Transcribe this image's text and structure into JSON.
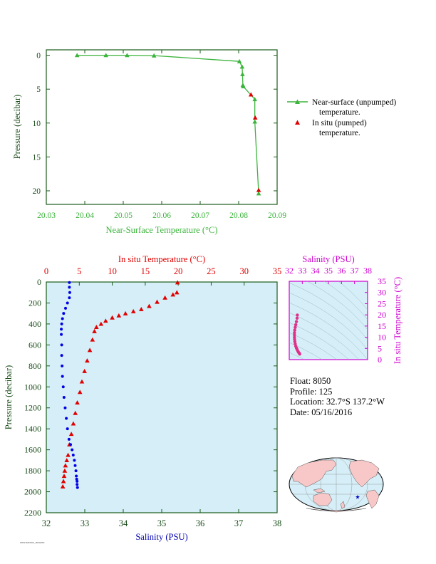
{
  "colors": {
    "green": "#3cb43c",
    "red": "#e00000",
    "blue": "#0000e6",
    "magenta": "#d000d0",
    "plot_bg": "#d6eef7",
    "land": "#f8c8c8",
    "ocean": "#d6eef7"
  },
  "chart_data": [
    {
      "type": "line",
      "id": "near-surface",
      "xlabel": "Near-Surface Temperature (°C)",
      "ylabel": "Pressure (decibar)",
      "xlim": [
        20.03,
        20.09
      ],
      "ylim": [
        22,
        -0.8
      ],
      "xticks": [
        "20.03",
        "20.04",
        "20.05",
        "20.06",
        "20.07",
        "20.08",
        "20.09"
      ],
      "yticks": [
        "0",
        "5",
        "10",
        "15",
        "20"
      ],
      "legend_placement": "right",
      "series": [
        {
          "name": "Near-surface (unpumped) temperature.",
          "marker": "triangle",
          "color": "green",
          "x": [
            20.038,
            20.0455,
            20.051,
            20.058,
            20.0802,
            20.0809,
            20.081,
            20.0811,
            20.0812,
            20.0842,
            20.0842,
            20.0852
          ],
          "y": [
            0.0,
            0.0,
            0.0,
            0.05,
            0.9,
            1.7,
            2.8,
            4.4,
            4.6,
            6.5,
            9.8,
            20.4
          ]
        },
        {
          "name": "In situ (pumped) temperature.",
          "marker": "triangle",
          "color": "red",
          "x": [
            20.0832,
            20.0843,
            20.0852
          ],
          "y": [
            5.8,
            9.2,
            19.9
          ]
        }
      ]
    },
    {
      "type": "line",
      "id": "profile",
      "xlabel": "Salinity (PSU)",
      "ylabel": "Pressure (decibar)",
      "x2label": "In situ Temperature (°C)",
      "salinity_lim": [
        32,
        38
      ],
      "temperature_lim": [
        0,
        35
      ],
      "ylim": [
        2200,
        0
      ],
      "salinity_ticks": [
        "32",
        "33",
        "34",
        "35",
        "36",
        "37",
        "38"
      ],
      "temperature_ticks": [
        "0",
        "5",
        "10",
        "15",
        "20",
        "25",
        "30",
        "35"
      ],
      "yticks": [
        "0",
        "200",
        "400",
        "600",
        "800",
        "1000",
        "1200",
        "1400",
        "1600",
        "1800",
        "2000",
        "2200"
      ],
      "series": [
        {
          "name": "In situ Temperature",
          "color": "red",
          "marker": "triangle",
          "x": [
            19.9,
            19.8,
            19.2,
            18.0,
            16.8,
            15.6,
            14.4,
            13.2,
            12.0,
            11.0,
            10.0,
            9.0,
            8.3,
            7.6,
            7.3,
            7.0,
            6.6,
            6.2,
            5.8,
            5.4,
            5.1,
            4.7,
            4.4,
            4.1,
            3.8,
            3.5,
            3.3,
            3.1,
            2.9,
            2.8,
            2.7,
            2.6,
            2.5
          ],
          "y": [
            5,
            100,
            120,
            150,
            190,
            230,
            260,
            280,
            300,
            320,
            340,
            370,
            400,
            430,
            470,
            550,
            650,
            750,
            850,
            950,
            1050,
            1150,
            1250,
            1350,
            1450,
            1550,
            1650,
            1700,
            1750,
            1800,
            1850,
            1900,
            1950
          ]
        },
        {
          "name": "Salinity",
          "color": "blue",
          "marker": "dot",
          "x": [
            32.6,
            32.6,
            32.61,
            32.6,
            32.55,
            32.5,
            32.45,
            32.42,
            32.4,
            32.39,
            32.39,
            32.4,
            32.4,
            32.41,
            32.42,
            32.44,
            32.46,
            32.49,
            32.52,
            32.55,
            32.59,
            32.63,
            32.67,
            32.7,
            32.73,
            32.75,
            32.77,
            32.78,
            32.79,
            32.8,
            32.8,
            32.81
          ],
          "y": [
            5,
            50,
            100,
            150,
            200,
            250,
            300,
            350,
            400,
            450,
            500,
            600,
            700,
            800,
            900,
            1000,
            1100,
            1200,
            1300,
            1400,
            1500,
            1550,
            1600,
            1650,
            1700,
            1750,
            1800,
            1850,
            1880,
            1900,
            1930,
            1960
          ]
        }
      ]
    },
    {
      "type": "scatter",
      "id": "ts-diagram",
      "xlabel": "Salinity (PSU)",
      "ylabel": "In situ Temperature (°C)",
      "xlim": [
        32,
        38
      ],
      "ylim": [
        0,
        35
      ],
      "xticks": [
        "32",
        "33",
        "34",
        "35",
        "36",
        "37",
        "38"
      ],
      "yticks": [
        "0",
        "5",
        "10",
        "15",
        "20",
        "25",
        "30",
        "35"
      ],
      "series": [
        {
          "name": "T-S",
          "color": "magenta",
          "x": [
            32.62,
            32.6,
            32.55,
            32.5,
            32.46,
            32.42,
            32.4,
            32.4,
            32.4,
            32.41,
            32.43,
            32.46,
            32.5,
            32.55,
            32.6,
            32.66,
            32.72,
            32.78,
            32.8
          ],
          "y": [
            19.9,
            18.5,
            17.0,
            15.6,
            14.4,
            13.2,
            12.0,
            11.0,
            10.0,
            9.0,
            8.0,
            7.0,
            6.0,
            5.2,
            4.5,
            3.8,
            3.2,
            2.8,
            2.5
          ]
        }
      ]
    }
  ],
  "legend": {
    "green_label": "Near-surface (unpumped)",
    "green_label2": "temperature.",
    "red_label": "In situ (pumped)",
    "red_label2": "temperature."
  },
  "info": {
    "float": "Float:  8050",
    "profile": "Profile:  125",
    "location": "Location:  32.7°S  137.2°W",
    "date": "Date:  05/16/2016"
  },
  "footer": "PRINTER/PDS_8050/050"
}
